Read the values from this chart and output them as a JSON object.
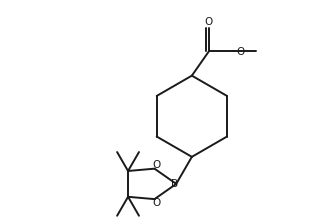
{
  "bg_color": "#ffffff",
  "line_color": "#1a1a1a",
  "line_width": 1.4,
  "figsize": [
    3.15,
    2.2
  ],
  "dpi": 100,
  "xlim": [
    0,
    10
  ],
  "ylim": [
    0,
    7
  ]
}
